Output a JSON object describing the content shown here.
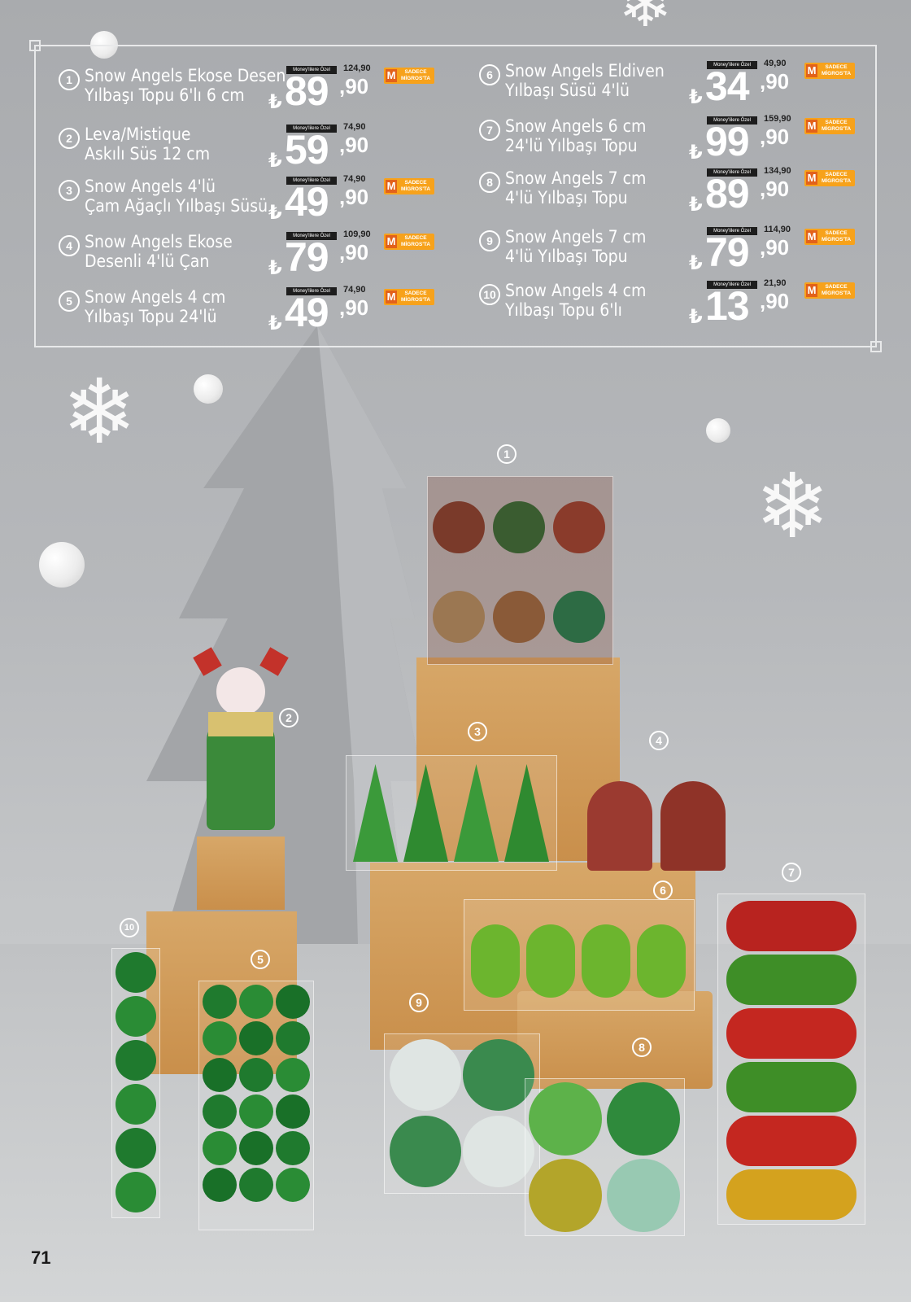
{
  "page_number": "71",
  "labels": {
    "money_tag": "Money'lilere Özel",
    "currency": "₺",
    "badge_m": "M",
    "badge_text": "SADECE MİGROS'TA"
  },
  "items": [
    {
      "num": "1",
      "name": "Snow Angels Ekose Desen\nYılbaşı Topu 6'lı 6 cm",
      "old": "124,90",
      "price_int": "89",
      "price_dec": ",90",
      "badge": true
    },
    {
      "num": "2",
      "name": "Leva/Mistique\nAskılı Süs 12 cm",
      "old": "74,90",
      "price_int": "59",
      "price_dec": ",90",
      "badge": false
    },
    {
      "num": "3",
      "name": "Snow Angels 4'lü\nÇam Ağaçlı Yılbaşı Süsü",
      "old": "74,90",
      "price_int": "49",
      "price_dec": ",90",
      "badge": true
    },
    {
      "num": "4",
      "name": "Snow Angels Ekose\nDesenli 4'lü Çan",
      "old": "109,90",
      "price_int": "79",
      "price_dec": ",90",
      "badge": true
    },
    {
      "num": "5",
      "name": "Snow Angels 4 cm\nYılbaşı Topu 24'lü",
      "old": "74,90",
      "price_int": "49",
      "price_dec": ",90",
      "badge": true
    },
    {
      "num": "6",
      "name": "Snow Angels Eldiven\nYılbaşı Süsü 4'lü",
      "old": "49,90",
      "price_int": "34",
      "price_dec": ",90",
      "badge": true
    },
    {
      "num": "7",
      "name": "Snow Angels 6 cm\n24'lü Yılbaşı Topu",
      "old": "159,90",
      "price_int": "99",
      "price_dec": ",90",
      "badge": true
    },
    {
      "num": "8",
      "name": "Snow Angels 7 cm\n4'lü Yılbaşı Topu",
      "old": "134,90",
      "price_int": "89",
      "price_dec": ",90",
      "badge": true
    },
    {
      "num": "9",
      "name": "Snow Angels 7 cm\n4'lü Yılbaşı Topu",
      "old": "114,90",
      "price_int": "79",
      "price_dec": ",90",
      "badge": true
    },
    {
      "num": "10",
      "name": "Snow Angels 4 cm\nYılbaşı Topu 6'lı",
      "old": "21,90",
      "price_int": "13",
      "price_dec": ",90",
      "badge": true
    }
  ],
  "photo_labels": [
    "1",
    "2",
    "3",
    "4",
    "5",
    "6",
    "7",
    "8",
    "9",
    "10"
  ],
  "colors": {
    "accent_orange": "#f7a21b",
    "m_orange": "#e2611b",
    "bg_grey": "#b2b4b7",
    "box_tan": "#d09a55"
  }
}
